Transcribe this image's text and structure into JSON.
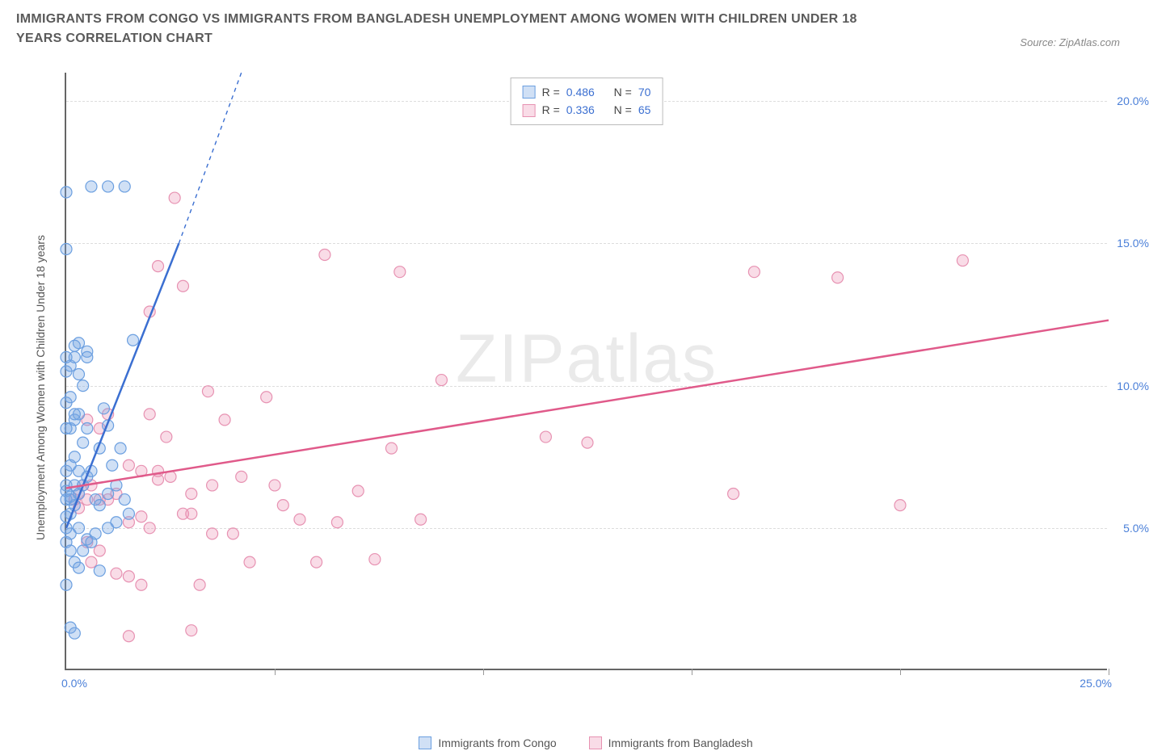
{
  "header": {
    "title": "IMMIGRANTS FROM CONGO VS IMMIGRANTS FROM BANGLADESH UNEMPLOYMENT AMONG WOMEN WITH CHILDREN UNDER 18 YEARS CORRELATION CHART",
    "source_label": "Source:",
    "source_name": "ZipAtlas.com"
  },
  "watermark": {
    "bold": "ZIP",
    "thin": "atlas"
  },
  "chart": {
    "type": "scatter",
    "background_color": "#ffffff",
    "grid_color": "#dddddd",
    "axis_color": "#666666",
    "tick_color": "#999999",
    "label_color": "#4a7fd8",
    "text_color": "#555555",
    "y_axis_title": "Unemployment Among Women with Children Under 18 years",
    "xlim": [
      0,
      25
    ],
    "x_left_label": "0.0%",
    "x_right_label": "25.0%",
    "x_tick_positions": [
      5,
      10,
      15,
      20,
      25
    ],
    "ylim": [
      0,
      21
    ],
    "y_ticks": [
      {
        "v": 5,
        "label": "5.0%"
      },
      {
        "v": 10,
        "label": "10.0%"
      },
      {
        "v": 15,
        "label": "15.0%"
      },
      {
        "v": 20,
        "label": "20.0%"
      }
    ],
    "series": [
      {
        "name": "Immigrants from Congo",
        "fill": "rgba(120,165,225,0.35)",
        "stroke": "#6b9fe0",
        "line_color": "#3b6fd1",
        "line_width": 2.5,
        "R": "0.486",
        "N": "70",
        "marker_radius": 7,
        "trend": {
          "x1": 0,
          "y1": 5.0,
          "x2": 4.2,
          "y2": 21.0
        },
        "trend_dash_ext": {
          "x1": 2.7,
          "y1": 15.0,
          "x2": 4.2,
          "y2": 21.0
        },
        "points": [
          [
            0.0,
            6.0
          ],
          [
            0.0,
            6.5
          ],
          [
            0.1,
            6.0
          ],
          [
            0.1,
            5.5
          ],
          [
            0.2,
            6.5
          ],
          [
            0.2,
            5.8
          ],
          [
            0.0,
            7.0
          ],
          [
            0.1,
            7.2
          ],
          [
            0.2,
            7.5
          ],
          [
            0.0,
            5.4
          ],
          [
            0.1,
            4.8
          ],
          [
            0.3,
            6.2
          ],
          [
            0.1,
            8.5
          ],
          [
            0.2,
            8.8
          ],
          [
            0.3,
            9.0
          ],
          [
            0.0,
            9.4
          ],
          [
            0.1,
            9.6
          ],
          [
            0.2,
            9.0
          ],
          [
            0.0,
            10.5
          ],
          [
            0.1,
            10.7
          ],
          [
            0.2,
            11.0
          ],
          [
            0.5,
            11.2
          ],
          [
            0.3,
            11.5
          ],
          [
            0.0,
            4.5
          ],
          [
            0.1,
            4.2
          ],
          [
            0.2,
            3.8
          ],
          [
            0.3,
            3.6
          ],
          [
            0.0,
            3.0
          ],
          [
            0.1,
            1.5
          ],
          [
            0.2,
            1.3
          ],
          [
            0.0,
            5.0
          ],
          [
            0.3,
            5.0
          ],
          [
            0.5,
            4.6
          ],
          [
            0.6,
            4.5
          ],
          [
            0.4,
            8.0
          ],
          [
            0.0,
            8.5
          ],
          [
            0.5,
            8.5
          ],
          [
            0.8,
            7.8
          ],
          [
            1.0,
            8.6
          ],
          [
            0.9,
            9.2
          ],
          [
            1.2,
            6.5
          ],
          [
            1.4,
            6.0
          ],
          [
            1.5,
            5.5
          ],
          [
            1.3,
            7.8
          ],
          [
            1.6,
            11.6
          ],
          [
            0.0,
            14.8
          ],
          [
            0.6,
            17.0
          ],
          [
            1.0,
            17.0
          ],
          [
            1.4,
            17.0
          ],
          [
            0.0,
            16.8
          ],
          [
            0.3,
            7.0
          ],
          [
            0.4,
            6.5
          ],
          [
            0.5,
            6.8
          ],
          [
            0.6,
            7.0
          ],
          [
            0.7,
            6.0
          ],
          [
            0.8,
            5.8
          ],
          [
            1.0,
            6.2
          ],
          [
            1.1,
            7.2
          ],
          [
            0.4,
            4.2
          ],
          [
            0.7,
            4.8
          ],
          [
            0.8,
            3.5
          ],
          [
            1.0,
            5.0
          ],
          [
            1.2,
            5.2
          ],
          [
            0.0,
            11.0
          ],
          [
            0.3,
            10.4
          ],
          [
            0.5,
            11.0
          ],
          [
            0.2,
            11.4
          ],
          [
            0.4,
            10.0
          ],
          [
            0.0,
            6.3
          ],
          [
            0.1,
            6.1
          ]
        ]
      },
      {
        "name": "Immigrants from Bangladesh",
        "fill": "rgba(235,140,175,0.30)",
        "stroke": "#e792b2",
        "line_color": "#e05a8a",
        "line_width": 2.5,
        "R": "0.336",
        "N": "65",
        "marker_radius": 7,
        "trend": {
          "x1": 0,
          "y1": 6.4,
          "x2": 25,
          "y2": 12.3
        },
        "points": [
          [
            0.2,
            6.0
          ],
          [
            0.3,
            6.2
          ],
          [
            0.4,
            6.5
          ],
          [
            0.5,
            6.0
          ],
          [
            0.3,
            5.7
          ],
          [
            0.6,
            6.5
          ],
          [
            0.8,
            6.0
          ],
          [
            0.5,
            4.5
          ],
          [
            0.6,
            3.8
          ],
          [
            0.8,
            4.2
          ],
          [
            1.2,
            3.4
          ],
          [
            1.5,
            3.3
          ],
          [
            1.8,
            3.0
          ],
          [
            1.0,
            6.0
          ],
          [
            1.2,
            6.2
          ],
          [
            1.5,
            5.2
          ],
          [
            1.8,
            5.4
          ],
          [
            2.0,
            5.0
          ],
          [
            2.2,
            6.7
          ],
          [
            2.4,
            8.2
          ],
          [
            2.5,
            6.8
          ],
          [
            3.0,
            6.2
          ],
          [
            3.2,
            3.0
          ],
          [
            3.4,
            9.8
          ],
          [
            3.5,
            6.5
          ],
          [
            3.8,
            8.8
          ],
          [
            4.0,
            4.8
          ],
          [
            4.2,
            6.8
          ],
          [
            4.4,
            3.8
          ],
          [
            4.8,
            9.6
          ],
          [
            5.0,
            6.5
          ],
          [
            5.2,
            5.8
          ],
          [
            5.6,
            5.3
          ],
          [
            6.0,
            3.8
          ],
          [
            6.2,
            14.6
          ],
          [
            6.5,
            5.2
          ],
          [
            7.0,
            6.3
          ],
          [
            7.4,
            3.9
          ],
          [
            7.8,
            7.8
          ],
          [
            8.0,
            14.0
          ],
          [
            8.5,
            5.3
          ],
          [
            9.0,
            10.2
          ],
          [
            11.5,
            8.2
          ],
          [
            12.5,
            8.0
          ],
          [
            16.0,
            6.2
          ],
          [
            16.5,
            14.0
          ],
          [
            18.5,
            13.8
          ],
          [
            20.0,
            5.8
          ],
          [
            21.5,
            14.4
          ],
          [
            2.0,
            12.6
          ],
          [
            2.2,
            14.2
          ],
          [
            2.6,
            16.6
          ],
          [
            2.8,
            13.5
          ],
          [
            0.5,
            8.8
          ],
          [
            0.8,
            8.5
          ],
          [
            1.0,
            9.0
          ],
          [
            1.5,
            7.2
          ],
          [
            1.8,
            7.0
          ],
          [
            2.0,
            9.0
          ],
          [
            2.2,
            7.0
          ],
          [
            2.8,
            5.5
          ],
          [
            3.0,
            5.5
          ],
          [
            3.5,
            4.8
          ],
          [
            1.5,
            1.2
          ],
          [
            3.0,
            1.4
          ]
        ]
      }
    ],
    "stats_box": {
      "R_label": "R =",
      "N_label": "N ="
    }
  }
}
